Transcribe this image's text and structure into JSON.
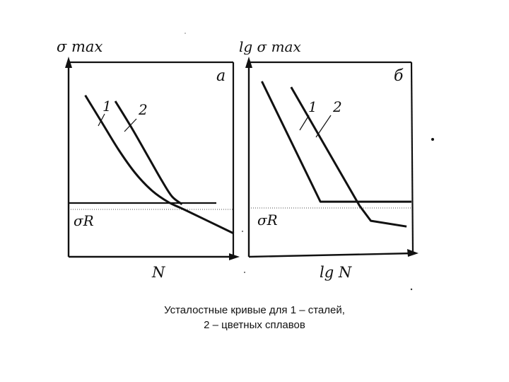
{
  "chart_data": [
    {
      "type": "line",
      "panel_label": "а",
      "ylabel": "σ max",
      "xlabel": "N",
      "ylim": [
        0,
        10
      ],
      "xlim": [
        0,
        10
      ],
      "hline": {
        "label": "σR",
        "y": 2.7
      },
      "series": [
        {
          "name": "1",
          "x": [
            1.0,
            2.0,
            3.0,
            4.0,
            5.0,
            6.0,
            7.0,
            9.9
          ],
          "y": [
            8.3,
            6.9,
            5.5,
            4.3,
            3.4,
            2.8,
            2.4,
            1.2
          ]
        },
        {
          "name": "2",
          "x": [
            2.8,
            3.8,
            4.8,
            5.6,
            6.2,
            6.8
          ],
          "y": [
            8.0,
            6.6,
            5.1,
            3.9,
            3.1,
            2.7
          ]
        }
      ]
    },
    {
      "type": "line",
      "panel_label": "б",
      "ylabel": "lg σ max",
      "xlabel": "lg N",
      "ylim": [
        0,
        10
      ],
      "xlim": [
        0,
        10
      ],
      "hline": {
        "label": "σR",
        "y": 2.7
      },
      "series": [
        {
          "name": "1",
          "x": [
            0.8,
            4.4,
            10.0
          ],
          "y": [
            9.0,
            2.7,
            2.7
          ]
        },
        {
          "name": "2",
          "x": [
            2.6,
            6.8,
            7.5,
            9.7
          ],
          "y": [
            8.7,
            2.5,
            1.7,
            1.4
          ]
        }
      ]
    }
  ],
  "caption": {
    "line1": "Усталостные кривые для 1 – сталей,",
    "line2": "2 – цветных сплавов"
  }
}
